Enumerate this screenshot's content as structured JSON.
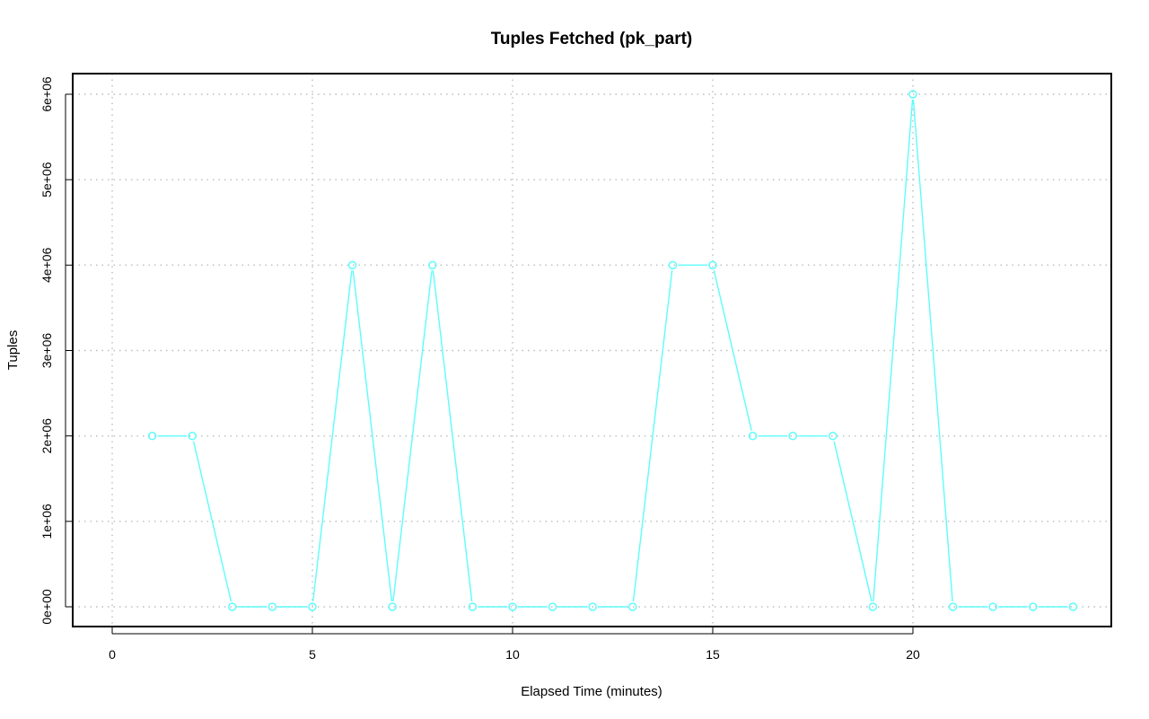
{
  "chart_data": {
    "type": "line",
    "title": "Tuples Fetched (pk_part)",
    "xlabel": "Elapsed Time (minutes)",
    "ylabel": "Tuples",
    "xlim": [
      0,
      24
    ],
    "ylim": [
      0,
      6000000
    ],
    "x_ticks": [
      0,
      5,
      10,
      15,
      20
    ],
    "x_tick_labels": [
      "0",
      "5",
      "10",
      "15",
      "20"
    ],
    "y_ticks": [
      0,
      1000000,
      2000000,
      3000000,
      4000000,
      5000000,
      6000000
    ],
    "y_tick_labels": [
      "0e+00",
      "1e+06",
      "2e+06",
      "3e+06",
      "4e+06",
      "5e+06",
      "6e+06"
    ],
    "grid": true,
    "legend": "none",
    "series": [
      {
        "color": "#5ffcfc",
        "marker": "open-circle",
        "x": [
          1,
          2,
          3,
          4,
          5,
          6,
          7,
          8,
          9,
          10,
          11,
          12,
          13,
          14,
          15,
          16,
          17,
          18,
          19,
          20,
          21,
          22,
          23,
          24
        ],
        "values": [
          2000000,
          2000000,
          0,
          0,
          0,
          4000000,
          0,
          4000000,
          0,
          0,
          0,
          0,
          0,
          4000000,
          4000000,
          2000000,
          2000000,
          2000000,
          0,
          6000000,
          0,
          0,
          0,
          0
        ]
      }
    ]
  }
}
